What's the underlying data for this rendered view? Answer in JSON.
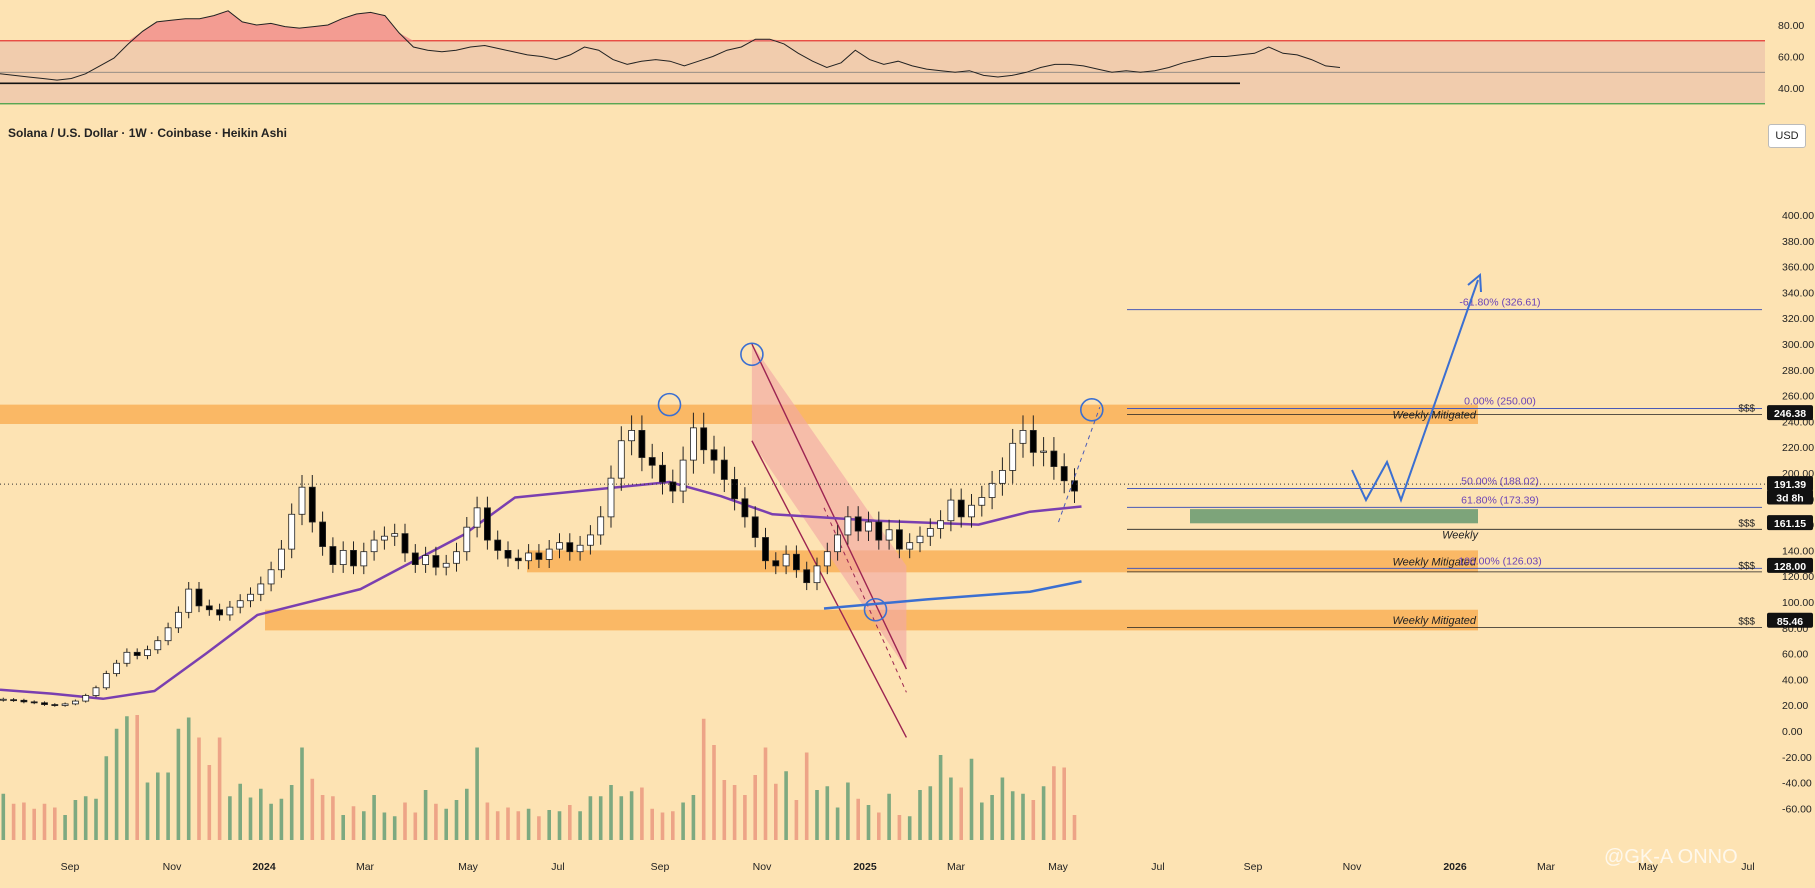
{
  "header": {
    "title": "Solana / U.S. Dollar · 1W · Coinbase · Heikin Ashi",
    "currency": "USD"
  },
  "watermark": "@GK-A  ONNO",
  "chart_data": [
    {
      "type": "line",
      "name": "rsi-panel",
      "y_ticks": [
        "80.00",
        "60.00",
        "40.00"
      ],
      "ylim": [
        30,
        88
      ],
      "overbought": 70,
      "oversold": 30,
      "midline": 50,
      "colors": {
        "overbought": "#e53935",
        "oversold": "#43a047",
        "line": "#222222",
        "fill": "#e7b9a8"
      },
      "values": [
        49,
        48,
        47,
        46,
        45,
        46,
        49,
        54,
        59,
        68,
        76,
        82,
        83,
        84,
        84,
        86,
        89,
        82,
        80,
        81,
        79,
        78,
        79,
        80,
        84,
        87,
        88,
        86,
        75,
        66,
        64,
        63,
        64,
        66,
        67,
        65,
        63,
        61,
        60,
        58,
        61,
        66,
        64,
        58,
        55,
        57,
        58,
        57,
        54,
        57,
        60,
        64,
        66,
        71,
        71,
        68,
        62,
        57,
        53,
        56,
        64,
        58,
        55,
        57,
        54,
        52,
        51,
        50,
        51,
        48,
        47,
        48,
        50,
        53,
        55,
        55,
        54,
        52,
        50,
        51,
        50,
        51,
        53,
        56,
        58,
        60,
        60,
        61,
        62,
        66,
        62,
        61,
        58,
        54,
        53
      ]
    },
    {
      "type": "candlestick",
      "name": "price-panel",
      "y_ticks": [
        "400.00",
        "380.00",
        "360.00",
        "340.00",
        "320.00",
        "300.00",
        "280.00",
        "260.00",
        "240.00",
        "220.00",
        "200.00",
        "180.00",
        "160.00",
        "140.00",
        "120.00",
        "100.00",
        "80.00",
        "60.00",
        "40.00",
        "20.00",
        "0.00",
        "-20.00",
        "-40.00",
        "-60.00"
      ],
      "x_labels": [
        "Sep",
        "Nov",
        "2024",
        "Mar",
        "May",
        "Jul",
        "Sep",
        "Nov",
        "2025",
        "Mar",
        "May",
        "Jul",
        "Sep",
        "Nov",
        "2026",
        "Mar",
        "May",
        "Jul"
      ],
      "candles": [
        [
          24.0,
          24.6
        ],
        [
          24.3,
          23.8
        ],
        [
          23.8,
          22.6
        ],
        [
          22.6,
          21.9
        ],
        [
          21.9,
          20.5
        ],
        [
          20.5,
          19.8
        ],
        [
          19.8,
          21.0
        ],
        [
          21.0,
          23.2
        ],
        [
          23.2,
          27.5
        ],
        [
          27.5,
          33.5
        ],
        [
          33.5,
          44.5
        ],
        [
          44.5,
          52.5
        ],
        [
          52.5,
          61.0
        ],
        [
          61.0,
          58.5
        ],
        [
          58.5,
          63.0
        ],
        [
          63.0,
          70.0
        ],
        [
          70.0,
          80.0
        ],
        [
          80.0,
          92.0
        ],
        [
          92.0,
          110.0
        ],
        [
          110.0,
          97.0
        ],
        [
          97.0,
          94.0
        ],
        [
          94.0,
          90.0
        ],
        [
          90.0,
          96.0
        ],
        [
          96.0,
          101.0
        ],
        [
          101.0,
          106.0
        ],
        [
          106.0,
          114.0
        ],
        [
          114.0,
          125.0
        ],
        [
          125.0,
          141.0
        ],
        [
          141.0,
          168.0
        ],
        [
          168.0,
          189.0
        ],
        [
          189.0,
          162.0
        ],
        [
          162.0,
          143.0
        ],
        [
          143.0,
          129.0
        ],
        [
          129.0,
          140.0
        ],
        [
          140.0,
          128.0
        ],
        [
          128.0,
          139.0
        ],
        [
          139.0,
          148.0
        ],
        [
          148.0,
          151.0
        ],
        [
          151.0,
          153.0
        ],
        [
          153.0,
          138.0
        ],
        [
          138.0,
          129.0
        ],
        [
          129.0,
          136.0
        ],
        [
          136.0,
          127.0
        ],
        [
          127.0,
          130.0
        ],
        [
          130.0,
          139.0
        ],
        [
          139.0,
          158.0
        ],
        [
          158.0,
          173.0
        ],
        [
          173.0,
          148.0
        ],
        [
          148.0,
          140.0
        ],
        [
          140.0,
          134.0
        ],
        [
          134.0,
          132.0
        ],
        [
          132.0,
          138.0
        ],
        [
          138.0,
          133.0
        ],
        [
          133.0,
          141.0
        ],
        [
          141.0,
          146.0
        ],
        [
          146.0,
          139.0
        ],
        [
          139.0,
          144.0
        ],
        [
          144.0,
          152.0
        ],
        [
          152.0,
          166.0
        ],
        [
          166.0,
          196.0
        ],
        [
          196.0,
          225.0
        ],
        [
          225.0,
          233.0
        ],
        [
          233.0,
          212.0
        ],
        [
          212.0,
          206.0
        ],
        [
          206.0,
          193.0
        ],
        [
          193.0,
          186.0
        ],
        [
          186.0,
          210.0
        ],
        [
          210.0,
          235.0
        ],
        [
          235.0,
          218.0
        ],
        [
          218.0,
          210.0
        ],
        [
          210.0,
          195.0
        ],
        [
          195.0,
          180.0
        ],
        [
          180.0,
          166.0
        ],
        [
          166.0,
          150.0
        ],
        [
          150.0,
          132.0
        ],
        [
          132.0,
          128.0
        ],
        [
          128.0,
          137.0
        ],
        [
          137.0,
          125.0
        ],
        [
          125.0,
          115.0
        ],
        [
          115.0,
          128.0
        ],
        [
          128.0,
          139.0
        ],
        [
          139.0,
          152.0
        ],
        [
          152.0,
          166.0
        ],
        [
          166.0,
          155.0
        ],
        [
          155.0,
          162.0
        ],
        [
          162.0,
          148.0
        ],
        [
          148.0,
          156.0
        ],
        [
          156.0,
          141.0
        ],
        [
          141.0,
          146.0
        ],
        [
          146.0,
          151.0
        ],
        [
          151.0,
          157.0
        ],
        [
          157.0,
          163.0
        ],
        [
          163.0,
          179.0
        ],
        [
          179.0,
          166.0
        ],
        [
          166.0,
          175.0
        ],
        [
          175.0,
          181.0
        ],
        [
          181.0,
          192.0
        ],
        [
          192.0,
          202.0
        ],
        [
          202.0,
          223.0
        ],
        [
          223.0,
          233.0
        ],
        [
          233.0,
          216.0
        ],
        [
          216.0,
          217.0
        ],
        [
          217.0,
          205.0
        ],
        [
          205.0,
          194.0
        ],
        [
          194.0,
          186.0
        ]
      ],
      "ma_purple": [
        [
          0,
          32
        ],
        [
          20,
          29
        ],
        [
          40,
          25
        ],
        [
          60,
          31
        ],
        [
          80,
          60
        ],
        [
          100,
          90
        ],
        [
          140,
          110
        ],
        [
          180,
          152
        ],
        [
          200,
          181
        ],
        [
          260,
          193
        ],
        [
          280,
          182
        ],
        [
          300,
          168
        ],
        [
          340,
          163
        ],
        [
          380,
          160
        ],
        [
          400,
          170
        ],
        [
          420,
          174
        ]
      ],
      "ma_blue": [
        [
          320,
          95
        ],
        [
          360,
          102
        ],
        [
          400,
          108
        ],
        [
          420,
          116
        ]
      ],
      "volume": [
        [
          0,
          0.37
        ],
        [
          1,
          0.29
        ],
        [
          2,
          0.3
        ],
        [
          3,
          0.25
        ],
        [
          4,
          0.29
        ],
        [
          5,
          0.26
        ],
        [
          6,
          0.2
        ],
        [
          7,
          0.32
        ],
        [
          8,
          0.35
        ],
        [
          9,
          0.33
        ],
        [
          10,
          0.67
        ],
        [
          11,
          0.89
        ],
        [
          12,
          0.99
        ],
        [
          13,
          1.0
        ],
        [
          14,
          0.46
        ],
        [
          15,
          0.54
        ],
        [
          16,
          0.54
        ],
        [
          17,
          0.89
        ],
        [
          18,
          0.98
        ],
        [
          19,
          0.82
        ],
        [
          20,
          0.6
        ],
        [
          21,
          0.82
        ],
        [
          22,
          0.35
        ],
        [
          23,
          0.45
        ],
        [
          24,
          0.34
        ],
        [
          25,
          0.41
        ],
        [
          26,
          0.29
        ],
        [
          27,
          0.33
        ],
        [
          28,
          0.44
        ],
        [
          29,
          0.74
        ],
        [
          30,
          0.49
        ],
        [
          31,
          0.36
        ],
        [
          32,
          0.35
        ],
        [
          33,
          0.2
        ],
        [
          34,
          0.27
        ],
        [
          35,
          0.23
        ],
        [
          36,
          0.36
        ],
        [
          37,
          0.22
        ],
        [
          38,
          0.19
        ],
        [
          39,
          0.3
        ],
        [
          40,
          0.22
        ],
        [
          41,
          0.4
        ],
        [
          42,
          0.29
        ],
        [
          43,
          0.25
        ],
        [
          44,
          0.32
        ],
        [
          45,
          0.41
        ],
        [
          46,
          0.74
        ],
        [
          47,
          0.3
        ],
        [
          48,
          0.23
        ],
        [
          49,
          0.26
        ],
        [
          50,
          0.23
        ],
        [
          51,
          0.25
        ],
        [
          52,
          0.19
        ],
        [
          53,
          0.24
        ],
        [
          54,
          0.23
        ],
        [
          55,
          0.28
        ],
        [
          56,
          0.23
        ],
        [
          57,
          0.35
        ],
        [
          58,
          0.35
        ],
        [
          59,
          0.44
        ],
        [
          60,
          0.35
        ],
        [
          61,
          0.39
        ],
        [
          62,
          0.42
        ],
        [
          63,
          0.25
        ],
        [
          64,
          0.22
        ],
        [
          65,
          0.23
        ],
        [
          66,
          0.3
        ],
        [
          67,
          0.36
        ],
        [
          68,
          0.97
        ],
        [
          69,
          0.76
        ],
        [
          70,
          0.48
        ],
        [
          71,
          0.44
        ],
        [
          72,
          0.36
        ],
        [
          73,
          0.52
        ],
        [
          74,
          0.74
        ],
        [
          75,
          0.45
        ],
        [
          76,
          0.55
        ],
        [
          77,
          0.32
        ],
        [
          78,
          0.7
        ],
        [
          79,
          0.4
        ],
        [
          80,
          0.43
        ],
        [
          81,
          0.26
        ],
        [
          82,
          0.46
        ],
        [
          83,
          0.33
        ],
        [
          84,
          0.28
        ],
        [
          85,
          0.22
        ],
        [
          86,
          0.37
        ],
        [
          87,
          0.2
        ],
        [
          88,
          0.19
        ],
        [
          89,
          0.4
        ],
        [
          90,
          0.43
        ],
        [
          91,
          0.68
        ],
        [
          92,
          0.5
        ],
        [
          93,
          0.42
        ],
        [
          94,
          0.65
        ],
        [
          95,
          0.3
        ],
        [
          96,
          0.36
        ],
        [
          97,
          0.5
        ],
        [
          98,
          0.39
        ],
        [
          99,
          0.37
        ],
        [
          100,
          0.32
        ],
        [
          101,
          0.43
        ],
        [
          102,
          0.59
        ],
        [
          103,
          0.58
        ],
        [
          104,
          0.2
        ]
      ],
      "zones": [
        {
          "label": "Weekly Mitigated",
          "range": [
            238,
            253
          ],
          "color": "#f8a94b"
        },
        {
          "label": "Weekly Mitigated",
          "range": [
            123,
            140
          ],
          "color": "#f8a94b"
        },
        {
          "label": "Weekly Mitigated",
          "range": [
            78,
            94
          ],
          "color": "#f8a94b"
        },
        {
          "label": "Weekly",
          "range": [
            161,
            172
          ],
          "color": "#6f9c73"
        }
      ],
      "fib_levels": [
        {
          "label": "-61.80% (326.61)",
          "value": 326.61
        },
        {
          "label": "0.00% (250.00)",
          "value": 250.0
        },
        {
          "label": "50.00% (188.02)",
          "value": 188.02
        },
        {
          "label": "61.80% (173.39)",
          "value": 173.39
        },
        {
          "label": "100.00% (126.03)",
          "value": 126.03
        }
      ],
      "liquidity_labels": [
        {
          "text": "$$$",
          "value": 250
        },
        {
          "text": "$$$",
          "value": 161
        },
        {
          "text": "$$$",
          "value": 128
        },
        {
          "text": "$$$",
          "value": 85
        }
      ],
      "price_tags": [
        {
          "text": "246.38",
          "value": 246.38,
          "bg": "#111111",
          "fg": "#ffffff"
        },
        {
          "text": "191.39",
          "value": 191.39,
          "bg": "#111111",
          "fg": "#ffffff"
        },
        {
          "text": "3d 8h",
          "value": 181,
          "bg": "#111111",
          "fg": "#ffffff"
        },
        {
          "text": "161.15",
          "value": 161.15,
          "bg": "#111111",
          "fg": "#ffffff"
        },
        {
          "text": "128.00",
          "value": 128.0,
          "bg": "#111111",
          "fg": "#ffffff"
        },
        {
          "text": "85.46",
          "value": 85.46,
          "bg": "#111111",
          "fg": "#ffffff"
        }
      ],
      "current_price": 191.39,
      "colors": {
        "up": "#ffffff",
        "down": "#000000",
        "vol_up": "#6fa27a",
        "vol_down": "#eb9c82",
        "purple": "#7a3fb0",
        "blue": "#3b6fd1",
        "channel": "#9c2451",
        "fib_line": "#4a5ab7",
        "fib_text": "#6b43b8"
      }
    }
  ]
}
